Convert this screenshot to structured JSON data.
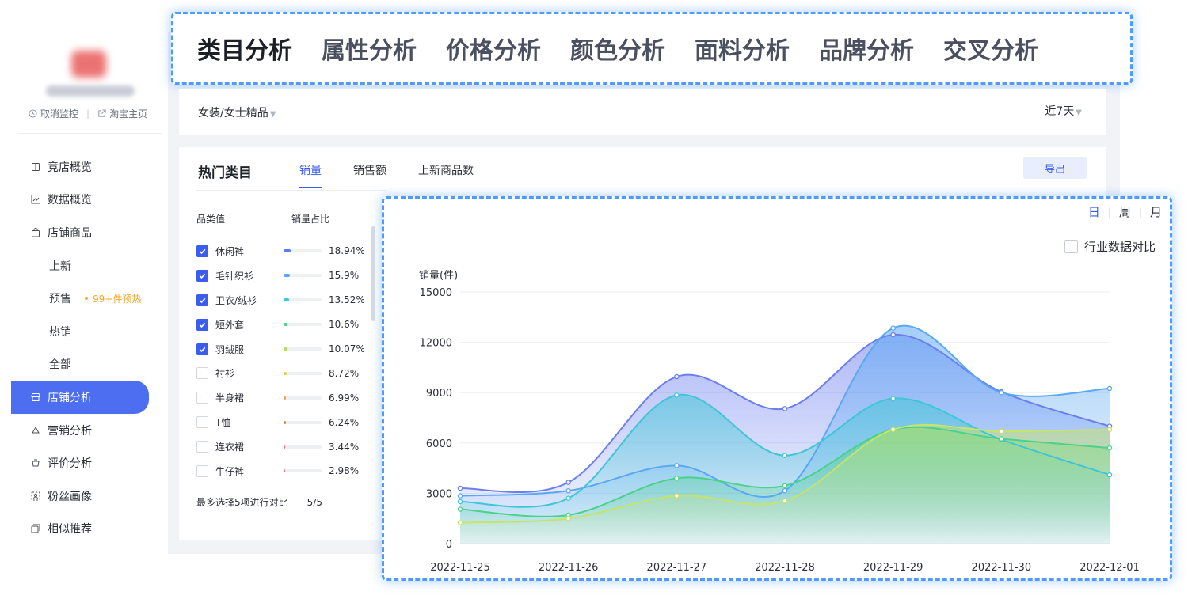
{
  "top_tabs": [
    "类目分析",
    "属性分析",
    "价格分析",
    "颜色分析",
    "面料分析",
    "品牌分析",
    "交叉分析"
  ],
  "shop": {
    "unmonitor_label": "取消监控",
    "homepage_label": "淘宝主页"
  },
  "nav": [
    {
      "label": "竞店概览",
      "icon": "book-icon",
      "sub": false,
      "active": false
    },
    {
      "label": "数据概览",
      "icon": "line-chart-icon",
      "sub": false,
      "active": false
    },
    {
      "label": "店铺商品",
      "icon": "bag-icon",
      "sub": false,
      "active": false
    },
    {
      "label": "上新",
      "icon": "",
      "sub": true,
      "active": false
    },
    {
      "label": "预售",
      "icon": "",
      "sub": true,
      "active": false,
      "badge": "99+件预热"
    },
    {
      "label": "热销",
      "icon": "",
      "sub": true,
      "active": false
    },
    {
      "label": "全部",
      "icon": "",
      "sub": true,
      "active": false
    },
    {
      "label": "店铺分析",
      "icon": "store-icon",
      "sub": false,
      "active": true
    },
    {
      "label": "营销分析",
      "icon": "marketing-icon",
      "sub": false,
      "active": false
    },
    {
      "label": "评价分析",
      "icon": "review-icon",
      "sub": false,
      "active": false
    },
    {
      "label": "粉丝画像",
      "icon": "fans-icon",
      "sub": false,
      "active": false
    },
    {
      "label": "相似推荐",
      "icon": "similar-icon",
      "sub": false,
      "active": false
    }
  ],
  "filter": {
    "category": "女装/女士精品",
    "range": "近7天"
  },
  "panel": {
    "title": "热门类目",
    "metric_tabs": [
      "销量",
      "销售额",
      "上新商品数"
    ],
    "active_metric": "销量",
    "export_label": "导出",
    "col_category": "品类值",
    "col_share": "销量占比",
    "footer_note": "最多选择5项进行对比",
    "footer_count": "5/5",
    "categories": [
      {
        "name": "休闲裤",
        "pct": "18.94%",
        "share": 18.94,
        "color": "#5b7cf7",
        "checked": true
      },
      {
        "name": "毛针织衫",
        "pct": "15.9%",
        "share": 15.9,
        "color": "#5aa8f3",
        "checked": true
      },
      {
        "name": "卫衣/绒衫",
        "pct": "13.52%",
        "share": 13.52,
        "color": "#3ec6d6",
        "checked": true
      },
      {
        "name": "短外套",
        "pct": "10.6%",
        "share": 10.6,
        "color": "#4ad28a",
        "checked": true
      },
      {
        "name": "羽绒服",
        "pct": "10.07%",
        "share": 10.07,
        "color": "#b7e05a",
        "checked": true
      },
      {
        "name": "衬衫",
        "pct": "8.72%",
        "share": 8.72,
        "color": "#f5c842",
        "checked": false
      },
      {
        "name": "半身裙",
        "pct": "6.99%",
        "share": 6.99,
        "color": "#f5a04a",
        "checked": false
      },
      {
        "name": "T恤",
        "pct": "6.24%",
        "share": 6.24,
        "color": "#f07b4a",
        "checked": false
      },
      {
        "name": "连衣裙",
        "pct": "3.44%",
        "share": 3.44,
        "color": "#f06a78",
        "checked": false
      },
      {
        "name": "牛仔裤",
        "pct": "2.98%",
        "share": 2.98,
        "color": "#f07a8c",
        "checked": false
      }
    ]
  },
  "chart_controls": {
    "periods": [
      "日",
      "周",
      "月"
    ],
    "active_period": "日",
    "compare_label": "行业数据对比"
  },
  "chart_data": {
    "type": "area",
    "ylabel": "销量(件)",
    "ylim": [
      0,
      15000
    ],
    "yticks": [
      0,
      3000,
      6000,
      9000,
      12000,
      15000
    ],
    "grid": true,
    "x": [
      "2022-11-25",
      "2022-11-26",
      "2022-11-27",
      "2022-11-28",
      "2022-11-29",
      "2022-11-30",
      "2022-12-01"
    ],
    "series": [
      {
        "color": "#6b7ff0",
        "values": [
          3300,
          3650,
          9950,
          8050,
          12450,
          9050,
          7000
        ]
      },
      {
        "color": "#5aa8f3",
        "values": [
          2850,
          3150,
          4650,
          3150,
          12850,
          9000,
          9250
        ]
      },
      {
        "color": "#3ec6d6",
        "values": [
          2500,
          2700,
          8850,
          5250,
          8650,
          6200,
          4100
        ]
      },
      {
        "color": "#4ad28a",
        "values": [
          2050,
          1700,
          3900,
          3450,
          6800,
          6250,
          5700
        ]
      },
      {
        "color": "#c6e36a",
        "values": [
          1250,
          1500,
          2850,
          2550,
          6800,
          6700,
          6800
        ]
      }
    ]
  }
}
